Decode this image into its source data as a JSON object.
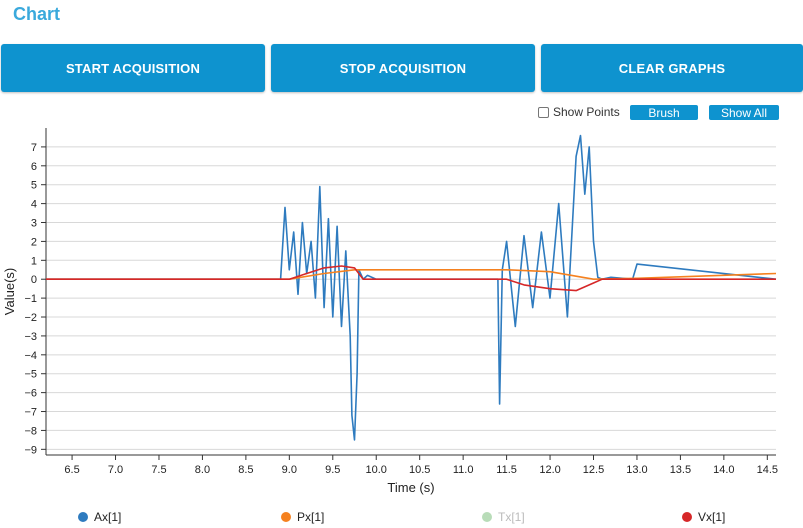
{
  "page": {
    "title": "Chart"
  },
  "buttons": {
    "start": "START ACQUISITION",
    "stop": "STOP ACQUISITION",
    "clear": "CLEAR GRAPHS"
  },
  "toolbar": {
    "show_points_label": "Show Points",
    "show_points_checked": false,
    "brush_label": "Brush",
    "show_all_label": "Show All"
  },
  "chart_data": {
    "type": "line",
    "xlabel": "Time (s)",
    "ylabel": "Value(s)",
    "xlim": [
      6.2,
      14.6
    ],
    "ylim": [
      -9.3,
      8.0
    ],
    "xticks": [
      "6.5",
      "7.0",
      "7.5",
      "8.0",
      "8.5",
      "9.0",
      "9.5",
      "10.0",
      "10.5",
      "11.0",
      "11.5",
      "12.0",
      "12.5",
      "13.0",
      "13.5",
      "14.0",
      "14.5"
    ],
    "yticks": [
      "7",
      "6",
      "5",
      "4",
      "3",
      "2",
      "1",
      "0",
      "−1",
      "−2",
      "−3",
      "−4",
      "−5",
      "−6",
      "−7",
      "−8",
      "−9"
    ],
    "grid": true,
    "legend_position": "bottom",
    "series": [
      {
        "name": "Ax[1]",
        "color": "#2e7bbf",
        "visible": true,
        "x": [
          6.2,
          8.9,
          8.95,
          9.0,
          9.05,
          9.1,
          9.15,
          9.2,
          9.25,
          9.3,
          9.35,
          9.4,
          9.45,
          9.5,
          9.55,
          9.6,
          9.65,
          9.7,
          9.72,
          9.75,
          9.78,
          9.8,
          9.85,
          9.9,
          10.0,
          11.4,
          11.42,
          11.45,
          11.5,
          11.6,
          11.7,
          11.8,
          11.9,
          12.0,
          12.1,
          12.2,
          12.3,
          12.35,
          12.4,
          12.45,
          12.5,
          12.55,
          12.6,
          12.7,
          12.95,
          13.0,
          14.6
        ],
        "y": [
          0,
          0,
          3.8,
          0.5,
          2.5,
          -0.8,
          3.0,
          0.3,
          2.0,
          -1.0,
          4.9,
          -1.5,
          3.2,
          -2.0,
          2.8,
          -2.5,
          1.5,
          -3.0,
          -7.2,
          -8.5,
          -5.0,
          0.5,
          0,
          0.2,
          0,
          0,
          -6.6,
          0.5,
          2.0,
          -2.5,
          2.3,
          -1.5,
          2.5,
          -1.0,
          4.0,
          -2.0,
          6.5,
          7.6,
          4.5,
          7.0,
          2.0,
          0.1,
          0,
          0.1,
          0,
          0.8,
          0
        ]
      },
      {
        "name": "Px[1]",
        "color": "#f5811f",
        "visible": true,
        "x": [
          6.2,
          9.0,
          9.4,
          9.75,
          10.0,
          11.5,
          12.0,
          12.5,
          13.0,
          14.6
        ],
        "y": [
          0,
          0,
          0.3,
          0.5,
          0.5,
          0.5,
          0.4,
          0,
          0.05,
          0.3
        ]
      },
      {
        "name": "Tx[1]",
        "color": "#b8dcb8",
        "visible": false,
        "x": [],
        "y": []
      },
      {
        "name": "Vx[1]",
        "color": "#d62728",
        "visible": true,
        "x": [
          6.2,
          9.0,
          9.2,
          9.4,
          9.6,
          9.75,
          9.85,
          10.0,
          11.5,
          11.7,
          12.0,
          12.3,
          12.5,
          12.6,
          14.6
        ],
        "y": [
          0,
          0,
          0.3,
          0.6,
          0.7,
          0.6,
          0,
          0,
          0,
          -0.3,
          -0.5,
          -0.6,
          -0.2,
          0,
          0
        ]
      }
    ]
  }
}
